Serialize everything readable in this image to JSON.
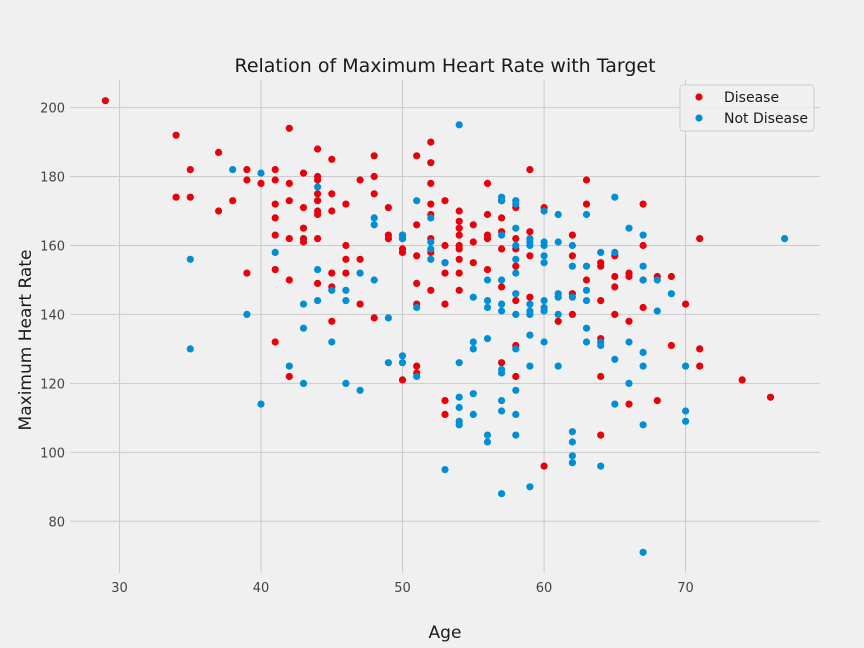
{
  "chart_data": {
    "type": "scatter",
    "title": "Relation of Maximum Heart Rate with Target",
    "xlabel": "Age",
    "ylabel": "Maximum Heart Rate",
    "xlim": [
      26.5,
      79.5
    ],
    "ylim": [
      65,
      208
    ],
    "xticks": [
      30,
      40,
      50,
      60,
      70
    ],
    "yticks": [
      80,
      100,
      120,
      140,
      160,
      180,
      200
    ],
    "grid": true,
    "legend_position": "top-right",
    "series": [
      {
        "name": "Disease",
        "color": "#e8000b",
        "points": [
          [
            29,
            202
          ],
          [
            34,
            192
          ],
          [
            34,
            174
          ],
          [
            35,
            182
          ],
          [
            35,
            174
          ],
          [
            37,
            187
          ],
          [
            37,
            170
          ],
          [
            38,
            173
          ],
          [
            39,
            182
          ],
          [
            39,
            179
          ],
          [
            39,
            152
          ],
          [
            40,
            178
          ],
          [
            41,
            182
          ],
          [
            41,
            179
          ],
          [
            41,
            172
          ],
          [
            41,
            168
          ],
          [
            41,
            163
          ],
          [
            41,
            153
          ],
          [
            41,
            132
          ],
          [
            42,
            194
          ],
          [
            42,
            178
          ],
          [
            42,
            173
          ],
          [
            42,
            162
          ],
          [
            42,
            150
          ],
          [
            42,
            122
          ],
          [
            43,
            181
          ],
          [
            43,
            171
          ],
          [
            43,
            165
          ],
          [
            43,
            162
          ],
          [
            43,
            161
          ],
          [
            44,
            188
          ],
          [
            44,
            180
          ],
          [
            44,
            179
          ],
          [
            44,
            175
          ],
          [
            44,
            173
          ],
          [
            44,
            170
          ],
          [
            44,
            169
          ],
          [
            44,
            162
          ],
          [
            44,
            149
          ],
          [
            45,
            185
          ],
          [
            45,
            175
          ],
          [
            45,
            170
          ],
          [
            45,
            152
          ],
          [
            45,
            148
          ],
          [
            45,
            138
          ],
          [
            46,
            172
          ],
          [
            46,
            160
          ],
          [
            46,
            156
          ],
          [
            46,
            152
          ],
          [
            47,
            179
          ],
          [
            47,
            156
          ],
          [
            47,
            143
          ],
          [
            48,
            186
          ],
          [
            48,
            180
          ],
          [
            48,
            175
          ],
          [
            48,
            139
          ],
          [
            49,
            171
          ],
          [
            49,
            163
          ],
          [
            49,
            162
          ],
          [
            50,
            163
          ],
          [
            50,
            162
          ],
          [
            50,
            159
          ],
          [
            50,
            158
          ],
          [
            50,
            121
          ],
          [
            51,
            186
          ],
          [
            51,
            166
          ],
          [
            51,
            157
          ],
          [
            51,
            149
          ],
          [
            51,
            143
          ],
          [
            51,
            125
          ],
          [
            51,
            123
          ],
          [
            52,
            190
          ],
          [
            52,
            184
          ],
          [
            52,
            178
          ],
          [
            52,
            172
          ],
          [
            52,
            169
          ],
          [
            52,
            162
          ],
          [
            52,
            158
          ],
          [
            52,
            147
          ],
          [
            53,
            173
          ],
          [
            53,
            160
          ],
          [
            53,
            155
          ],
          [
            53,
            152
          ],
          [
            53,
            143
          ],
          [
            53,
            115
          ],
          [
            53,
            111
          ],
          [
            54,
            170
          ],
          [
            54,
            167
          ],
          [
            54,
            165
          ],
          [
            54,
            163
          ],
          [
            54,
            160
          ],
          [
            54,
            159
          ],
          [
            54,
            156
          ],
          [
            54,
            152
          ],
          [
            54,
            147
          ],
          [
            55,
            166
          ],
          [
            55,
            161
          ],
          [
            55,
            155
          ],
          [
            56,
            178
          ],
          [
            56,
            169
          ],
          [
            56,
            163
          ],
          [
            56,
            162
          ],
          [
            56,
            153
          ],
          [
            57,
            173
          ],
          [
            57,
            168
          ],
          [
            57,
            164
          ],
          [
            57,
            159
          ],
          [
            57,
            148
          ],
          [
            57,
            126
          ],
          [
            58,
            171
          ],
          [
            58,
            162
          ],
          [
            58,
            159
          ],
          [
            58,
            154
          ],
          [
            58,
            144
          ],
          [
            58,
            131
          ],
          [
            58,
            122
          ],
          [
            59,
            182
          ],
          [
            59,
            164
          ],
          [
            59,
            157
          ],
          [
            59,
            145
          ],
          [
            60,
            171
          ],
          [
            60,
            96
          ],
          [
            61,
            138
          ],
          [
            62,
            163
          ],
          [
            62,
            157
          ],
          [
            62,
            146
          ],
          [
            62,
            140
          ],
          [
            63,
            179
          ],
          [
            63,
            172
          ],
          [
            63,
            150
          ],
          [
            64,
            155
          ],
          [
            64,
            154
          ],
          [
            64,
            144
          ],
          [
            64,
            133
          ],
          [
            64,
            122
          ],
          [
            64,
            105
          ],
          [
            65,
            157
          ],
          [
            65,
            151
          ],
          [
            65,
            148
          ],
          [
            65,
            140
          ],
          [
            66,
            152
          ],
          [
            66,
            151
          ],
          [
            66,
            138
          ],
          [
            66,
            114
          ],
          [
            67,
            172
          ],
          [
            67,
            160
          ],
          [
            67,
            150
          ],
          [
            67,
            142
          ],
          [
            68,
            151
          ],
          [
            68,
            115
          ],
          [
            69,
            151
          ],
          [
            69,
            131
          ],
          [
            70,
            143
          ],
          [
            71,
            162
          ],
          [
            71,
            130
          ],
          [
            71,
            125
          ],
          [
            74,
            121
          ],
          [
            76,
            116
          ]
        ]
      },
      {
        "name": "Not Disease",
        "color": "#008fd5",
        "points": [
          [
            35,
            156
          ],
          [
            35,
            130
          ],
          [
            38,
            182
          ],
          [
            39,
            140
          ],
          [
            40,
            181
          ],
          [
            40,
            114
          ],
          [
            41,
            158
          ],
          [
            42,
            125
          ],
          [
            43,
            143
          ],
          [
            43,
            136
          ],
          [
            43,
            120
          ],
          [
            44,
            177
          ],
          [
            44,
            153
          ],
          [
            44,
            144
          ],
          [
            45,
            147
          ],
          [
            45,
            132
          ],
          [
            46,
            147
          ],
          [
            46,
            144
          ],
          [
            46,
            120
          ],
          [
            47,
            152
          ],
          [
            47,
            118
          ],
          [
            48,
            168
          ],
          [
            48,
            166
          ],
          [
            48,
            150
          ],
          [
            49,
            139
          ],
          [
            49,
            126
          ],
          [
            50,
            163
          ],
          [
            50,
            162
          ],
          [
            50,
            128
          ],
          [
            50,
            126
          ],
          [
            51,
            173
          ],
          [
            51,
            142
          ],
          [
            51,
            122
          ],
          [
            52,
            168
          ],
          [
            52,
            161
          ],
          [
            52,
            159
          ],
          [
            52,
            156
          ],
          [
            53,
            155
          ],
          [
            53,
            95
          ],
          [
            54,
            195
          ],
          [
            54,
            126
          ],
          [
            54,
            116
          ],
          [
            54,
            113
          ],
          [
            54,
            109
          ],
          [
            54,
            108
          ],
          [
            55,
            145
          ],
          [
            55,
            132
          ],
          [
            55,
            130
          ],
          [
            55,
            117
          ],
          [
            55,
            111
          ],
          [
            56,
            150
          ],
          [
            56,
            144
          ],
          [
            56,
            142
          ],
          [
            56,
            133
          ],
          [
            56,
            105
          ],
          [
            56,
            103
          ],
          [
            57,
            174
          ],
          [
            57,
            173
          ],
          [
            57,
            163
          ],
          [
            57,
            150
          ],
          [
            57,
            143
          ],
          [
            57,
            141
          ],
          [
            57,
            124
          ],
          [
            57,
            123
          ],
          [
            57,
            115
          ],
          [
            57,
            112
          ],
          [
            57,
            88
          ],
          [
            58,
            173
          ],
          [
            58,
            172
          ],
          [
            58,
            165
          ],
          [
            58,
            160
          ],
          [
            58,
            156
          ],
          [
            58,
            152
          ],
          [
            58,
            146
          ],
          [
            58,
            140
          ],
          [
            58,
            130
          ],
          [
            58,
            118
          ],
          [
            58,
            111
          ],
          [
            58,
            105
          ],
          [
            59,
            162
          ],
          [
            59,
            161
          ],
          [
            59,
            160
          ],
          [
            59,
            143
          ],
          [
            59,
            141
          ],
          [
            59,
            140
          ],
          [
            59,
            134
          ],
          [
            59,
            125
          ],
          [
            59,
            90
          ],
          [
            60,
            170
          ],
          [
            60,
            161
          ],
          [
            60,
            160
          ],
          [
            60,
            157
          ],
          [
            60,
            155
          ],
          [
            60,
            144
          ],
          [
            60,
            142
          ],
          [
            60,
            141
          ],
          [
            60,
            132
          ],
          [
            61,
            169
          ],
          [
            61,
            161
          ],
          [
            61,
            146
          ],
          [
            61,
            145
          ],
          [
            61,
            140
          ],
          [
            61,
            125
          ],
          [
            62,
            160
          ],
          [
            62,
            154
          ],
          [
            62,
            145
          ],
          [
            62,
            106
          ],
          [
            62,
            103
          ],
          [
            62,
            99
          ],
          [
            62,
            97
          ],
          [
            63,
            169
          ],
          [
            63,
            154
          ],
          [
            63,
            147
          ],
          [
            63,
            144
          ],
          [
            63,
            136
          ],
          [
            63,
            132
          ],
          [
            64,
            158
          ],
          [
            64,
            132
          ],
          [
            64,
            131
          ],
          [
            64,
            96
          ],
          [
            65,
            174
          ],
          [
            65,
            158
          ],
          [
            65,
            127
          ],
          [
            65,
            114
          ],
          [
            66,
            165
          ],
          [
            66,
            132
          ],
          [
            66,
            120
          ],
          [
            67,
            163
          ],
          [
            67,
            154
          ],
          [
            67,
            150
          ],
          [
            67,
            129
          ],
          [
            67,
            125
          ],
          [
            67,
            108
          ],
          [
            67,
            71
          ],
          [
            68,
            150
          ],
          [
            68,
            141
          ],
          [
            69,
            146
          ],
          [
            70,
            125
          ],
          [
            70,
            112
          ],
          [
            70,
            109
          ],
          [
            77,
            162
          ]
        ]
      }
    ]
  }
}
